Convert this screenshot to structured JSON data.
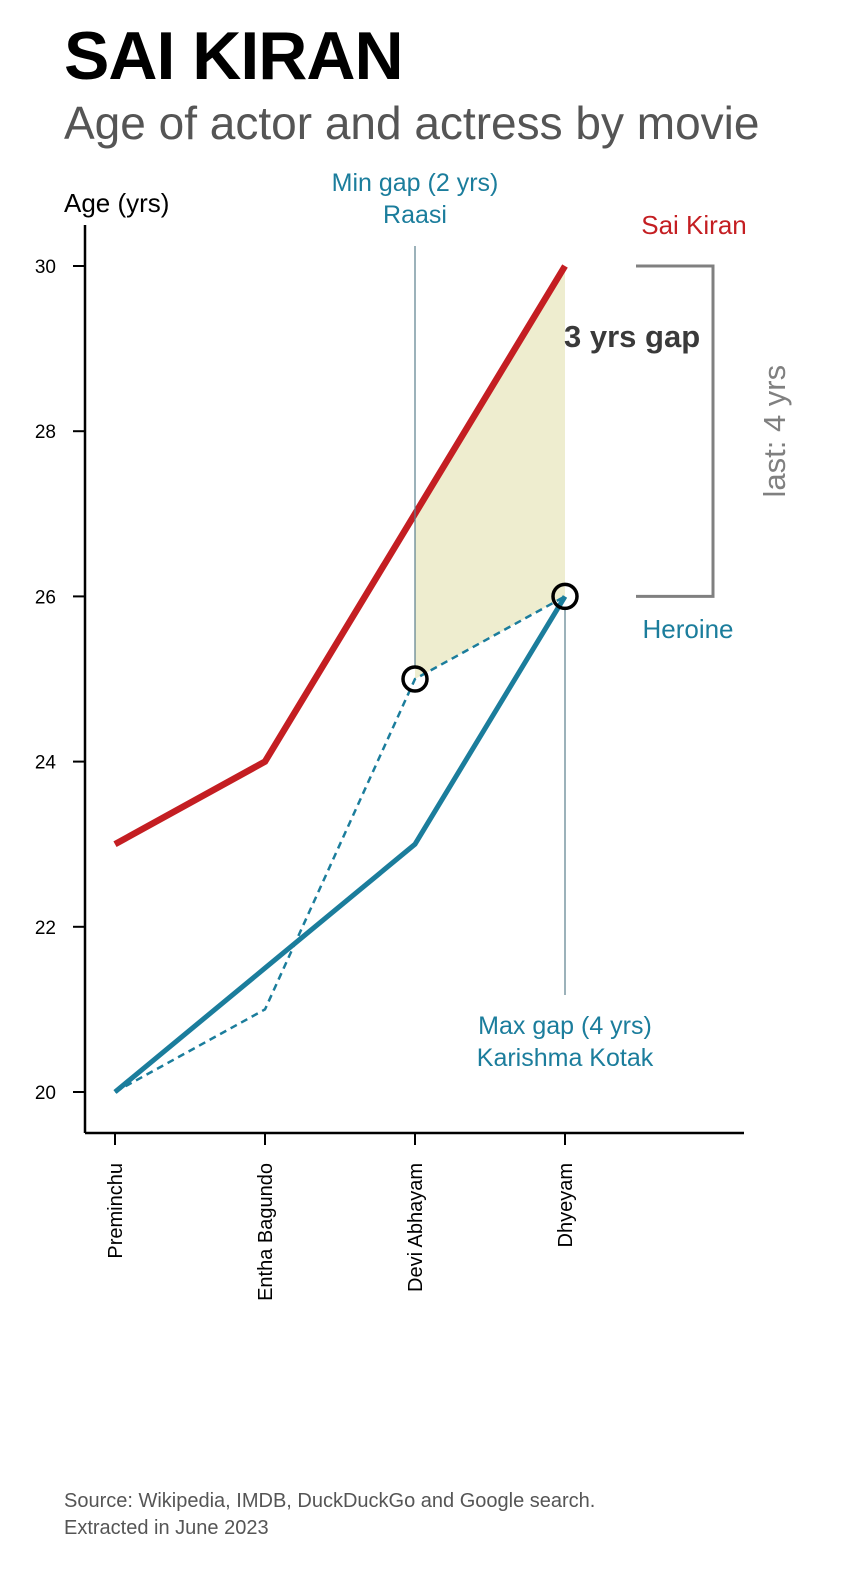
{
  "header": {
    "title": "SAI KIRAN",
    "subtitle": "Age of actor and actress by movie"
  },
  "footer": {
    "source_line1": "Source: Wikipedia, IMDB, DuckDuckGo and Google search.",
    "source_line2": "Extracted in June 2023"
  },
  "colors": {
    "actor": "#c41e22",
    "heroine": "#1b7d9c",
    "gap_fill": "#eeedcf",
    "bracket": "#808080",
    "marker": "#000000"
  },
  "chart_data": {
    "type": "line",
    "ylabel": "Age (yrs)",
    "xlabel": "",
    "ylim": [
      20,
      30
    ],
    "yticks": [
      20,
      22,
      24,
      26,
      28,
      30
    ],
    "grid": false,
    "categories": [
      "Preminchu",
      "Entha Bagundo",
      "Devi Abhayam",
      "Dhyeyam"
    ],
    "series": [
      {
        "name": "Sai Kiran",
        "role": "actor",
        "values": [
          23,
          24,
          27,
          30
        ]
      },
      {
        "name": "Heroine",
        "role": "heroine",
        "values": [
          20,
          21.5,
          23,
          26
        ]
      },
      {
        "name": "",
        "role": "heroine-dashed",
        "values": [
          20,
          21,
          25,
          26
        ]
      }
    ],
    "annotations": {
      "min_gap": {
        "line1": "Min gap (2 yrs)",
        "line2": "Raasi",
        "category": "Devi Abhayam",
        "marker_value": 25
      },
      "max_gap": {
        "line1": "Max gap (4 yrs)",
        "line2": "Karishma Kotak",
        "category": "Dhyeyam",
        "marker_value": 26
      },
      "shaded_gap": {
        "label": "3 yrs gap",
        "from_category": "Devi Abhayam",
        "to_category": "Dhyeyam"
      },
      "last_bracket": {
        "label": "last: 4 yrs",
        "top_value": 30,
        "bottom_value": 26
      },
      "actor_label": "Sai Kiran",
      "heroine_label": "Heroine"
    }
  }
}
